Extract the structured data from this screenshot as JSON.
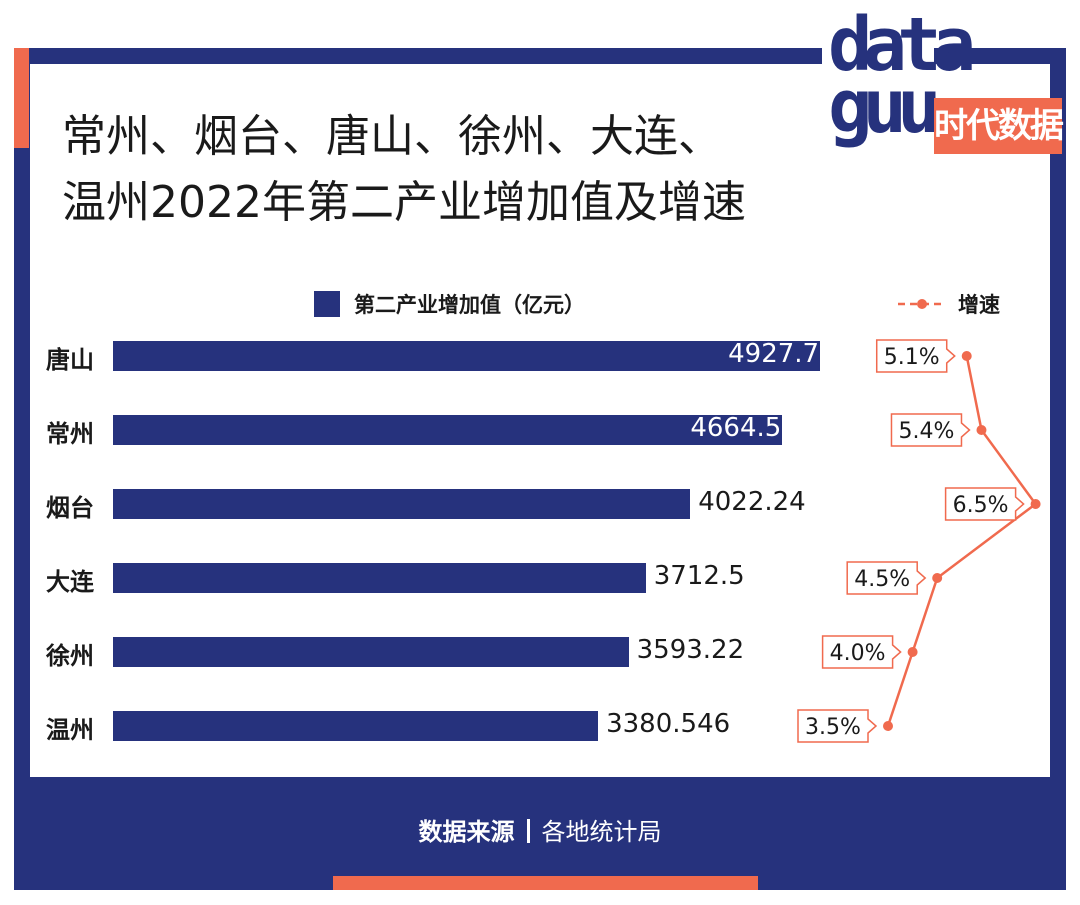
{
  "title": {
    "line1": "常州、烟台、唐山、徐州、大连、",
    "line2": "温州2022年第二产业增加值及增速"
  },
  "logo": {
    "text": "data\nguu",
    "tag": "时代数据"
  },
  "legend": {
    "bar_label": "第二产业增加值（亿元）",
    "line_label": "增速"
  },
  "source": {
    "label": "数据来源",
    "value": "各地统计局"
  },
  "colors": {
    "bar": "#26327d",
    "line": "#f06a4e",
    "frame": "#26327d",
    "accent": "#f06a4e"
  },
  "chart_data": {
    "type": "bar",
    "orientation": "horizontal",
    "categories": [
      "唐山",
      "常州",
      "烟台",
      "大连",
      "徐州",
      "温州"
    ],
    "series": [
      {
        "name": "第二产业增加值（亿元）",
        "values": [
          4927.7,
          4664.5,
          4022.24,
          3712.5,
          3593.22,
          3380.546
        ]
      },
      {
        "name": "增速",
        "values": [
          5.1,
          5.4,
          6.5,
          4.5,
          4.0,
          3.5
        ],
        "unit": "%"
      }
    ],
    "value_labels": [
      "4927.7",
      "4664.5",
      "4022.24",
      "3712.5",
      "3593.22",
      "3380.546"
    ],
    "speed_labels": [
      "5.1%",
      "5.4%",
      "6.5%",
      "4.5%",
      "4.0%",
      "3.5%"
    ],
    "legend_position": "top",
    "grid": false
  }
}
